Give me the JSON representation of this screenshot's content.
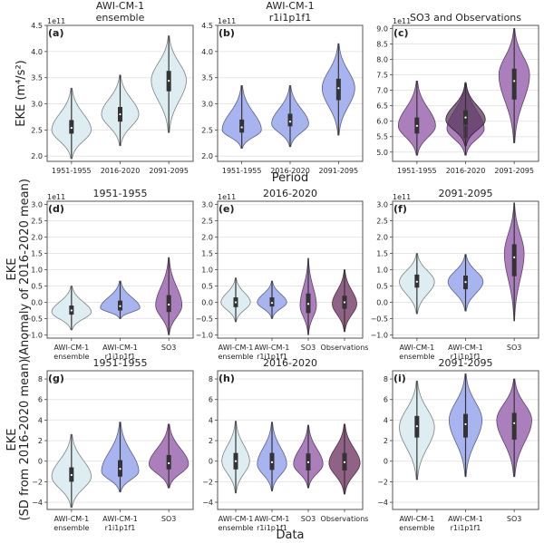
{
  "figure": {
    "top_row_xlabel": "Period",
    "bottom_row_xlabel": "Data",
    "row_ylabels": [
      [
        "EKE (m⁴/s²)"
      ],
      [
        "EKE",
        "(Anomaly of 2016-2020 mean)"
      ],
      [
        "EKE",
        "(SD from 2016-2020 mean)"
      ]
    ],
    "colors": {
      "AWI-CM-1 ensemble": "#dcecf0",
      "AWI-CM-1 r1i1p1f1": "#a3b0ee",
      "SO3": "#a678b8",
      "Observations": "#8a5a7e",
      "SO3 2016-2020 overlay": "#5a3a5e",
      "box": "#333333",
      "grid": "#e6e6e6"
    }
  },
  "chart_data": [
    {
      "panel": "(a)",
      "type": "violin",
      "title": [
        "AWI-CM-1",
        "ensemble"
      ],
      "offset_label": "1e11",
      "ylim": [
        1.9,
        4.5
      ],
      "yticks": [
        2.0,
        2.5,
        3.0,
        3.5,
        4.0,
        4.5
      ],
      "ytick_labels": [
        "2.0",
        "2.5",
        "3.0",
        "3.5",
        "4.0",
        "4.5"
      ],
      "categories": [
        "1951-1955",
        "2016-2020",
        "2091-2095"
      ],
      "series": [
        {
          "name": "AWI-CM-1 ensemble",
          "color_key": "AWI-CM-1 ensemble",
          "violins": [
            {
              "min": 1.95,
              "max": 3.3,
              "q1": 2.43,
              "median": 2.54,
              "q3": 2.69,
              "mode": 2.5,
              "width": 0.9
            },
            {
              "min": 2.2,
              "max": 3.55,
              "q1": 2.66,
              "median": 2.8,
              "q3": 2.94,
              "mode": 2.8,
              "width": 0.85
            },
            {
              "min": 2.45,
              "max": 4.3,
              "q1": 3.24,
              "median": 3.44,
              "q3": 3.63,
              "mode": 3.45,
              "width": 0.8
            }
          ]
        }
      ]
    },
    {
      "panel": "(b)",
      "type": "violin",
      "title": [
        "AWI-CM-1",
        "r1i1p1f1"
      ],
      "offset_label": "1e11",
      "ylim": [
        1.9,
        4.5
      ],
      "yticks": [
        2.0,
        2.5,
        3.0,
        3.5,
        4.0,
        4.5
      ],
      "ytick_labels": [
        "2.0",
        "2.5",
        "3.0",
        "3.5",
        "4.0",
        "4.5"
      ],
      "categories": [
        "1951-1955",
        "2016-2020",
        "2091-2095"
      ],
      "series": [
        {
          "name": "AWI-CM-1 r1i1p1f1",
          "color_key": "AWI-CM-1 r1i1p1f1",
          "violins": [
            {
              "min": 2.15,
              "max": 3.35,
              "q1": 2.45,
              "median": 2.55,
              "q3": 2.7,
              "mode": 2.5,
              "width": 0.9
            },
            {
              "min": 2.18,
              "max": 3.35,
              "q1": 2.57,
              "median": 2.66,
              "q3": 2.81,
              "mode": 2.62,
              "width": 0.85
            },
            {
              "min": 2.4,
              "max": 4.15,
              "q1": 3.07,
              "median": 3.3,
              "q3": 3.48,
              "mode": 3.3,
              "width": 0.75
            }
          ]
        }
      ]
    },
    {
      "panel": "(c)",
      "type": "violin",
      "title": [
        "SO3 and Observations"
      ],
      "offset_label": "1e11",
      "ylim": [
        4.7,
        9.1
      ],
      "yticks": [
        5.0,
        5.5,
        6.0,
        6.5,
        7.0,
        7.5,
        8.0,
        8.5,
        9.0
      ],
      "ytick_labels": [
        "5.0",
        "5.5",
        "6.0",
        "6.5",
        "7.0",
        "7.5",
        "8.0",
        "8.5",
        "9.0"
      ],
      "categories": [
        "1951-1955",
        "2016-2020",
        "2091-2095"
      ],
      "series": [
        {
          "name": "SO3",
          "color_key": "SO3",
          "violins": [
            {
              "min": 4.9,
              "max": 7.3,
              "q1": 5.6,
              "median": 5.85,
              "q3": 6.12,
              "mode": 5.85,
              "width": 0.85
            },
            {
              "min": 4.9,
              "max": 7.25,
              "q1": 5.45,
              "median": 5.85,
              "q3": 6.35,
              "mode": 5.75,
              "width": 0.85
            },
            {
              "min": 5.3,
              "max": 9.0,
              "q1": 6.7,
              "median": 7.3,
              "q3": 7.7,
              "mode": 7.5,
              "width": 0.7
            }
          ]
        },
        {
          "name": "Observations",
          "color_key": "SO3 2016-2020 overlay",
          "violins": [
            null,
            {
              "min": 5.2,
              "max": 7.2,
              "q1": 5.9,
              "median": 6.12,
              "q3": 6.35,
              "mode": 6.05,
              "width": 0.9
            },
            null
          ]
        }
      ]
    },
    {
      "panel": "(d)",
      "type": "violin",
      "title": [
        "1951-1955"
      ],
      "offset_label": "1e11",
      "ylim": [
        -1.1,
        3.1
      ],
      "yticks": [
        -1.0,
        -0.5,
        0.0,
        0.5,
        1.0,
        1.5,
        2.0,
        2.5,
        3.0
      ],
      "ytick_labels": [
        "−1.0",
        "−0.5",
        "0.0",
        "0.5",
        "1.0",
        "1.5",
        "2.0",
        "2.5",
        "3.0"
      ],
      "categories": [
        "AWI-CM-1\nensemble",
        "AWI-CM-1\nr1i1p1f1",
        "SO3"
      ],
      "series": [
        {
          "name": "period",
          "violins": [
            {
              "color_key": "AWI-CM-1 ensemble",
              "min": -0.85,
              "max": 0.5,
              "q1": -0.38,
              "median": -0.25,
              "q3": -0.1,
              "mode": -0.3,
              "width": 0.9
            },
            {
              "color_key": "AWI-CM-1 r1i1p1f1",
              "min": -0.5,
              "max": 0.65,
              "q1": -0.25,
              "median": -0.12,
              "q3": 0.05,
              "mode": -0.17,
              "width": 0.9
            },
            {
              "color_key": "SO3",
              "min": -1.0,
              "max": 1.37,
              "q1": -0.3,
              "median": -0.07,
              "q3": 0.22,
              "mode": -0.1,
              "width": 0.6
            }
          ]
        }
      ]
    },
    {
      "panel": "(e)",
      "type": "violin",
      "title": [
        "2016-2020"
      ],
      "offset_label": "1e11",
      "ylim": [
        -1.1,
        3.1
      ],
      "yticks": [
        -1.0,
        -0.5,
        0.0,
        0.5,
        1.0,
        1.5,
        2.0,
        2.5,
        3.0
      ],
      "ytick_labels": [
        "−1.0",
        "−0.5",
        "0.0",
        "0.5",
        "1.0",
        "1.5",
        "2.0",
        "2.5",
        "3.0"
      ],
      "categories": [
        "AWI-CM-1\nensemble",
        "AWI-CM-1\nr1i1p1f1",
        "SO3",
        "Observations"
      ],
      "series": [
        {
          "name": "period",
          "violins": [
            {
              "color_key": "AWI-CM-1 ensemble",
              "min": -0.6,
              "max": 0.75,
              "q1": -0.15,
              "median": 0.0,
              "q3": 0.15,
              "mode": 0.0,
              "width": 0.9
            },
            {
              "color_key": "AWI-CM-1 r1i1p1f1",
              "min": -0.5,
              "max": 0.65,
              "q1": -0.13,
              "median": -0.02,
              "q3": 0.15,
              "mode": 0.0,
              "width": 0.9
            },
            {
              "color_key": "SO3",
              "min": -1.0,
              "max": 1.35,
              "q1": -0.33,
              "median": -0.05,
              "q3": 0.27,
              "mode": -0.1,
              "width": 0.5
            },
            {
              "color_key": "Observations",
              "min": -0.9,
              "max": 1.0,
              "q1": -0.2,
              "median": 0.0,
              "q3": 0.2,
              "mode": -0.05,
              "width": 0.75
            }
          ]
        }
      ]
    },
    {
      "panel": "(f)",
      "type": "violin",
      "title": [
        "2091-2095"
      ],
      "offset_label": "1e11",
      "ylim": [
        -1.1,
        3.1
      ],
      "yticks": [
        -1.0,
        -0.5,
        0.0,
        0.5,
        1.0,
        1.5,
        2.0,
        2.5,
        3.0
      ],
      "ytick_labels": [
        "−1.0",
        "−0.5",
        "0.0",
        "0.5",
        "1.0",
        "1.5",
        "2.0",
        "2.5",
        "3.0"
      ],
      "categories": [
        "AWI-CM-1\nensemble",
        "AWI-CM-1\nr1i1p1f1",
        "SO3"
      ],
      "series": [
        {
          "name": "period",
          "violins": [
            {
              "color_key": "AWI-CM-1 ensemble",
              "min": -0.35,
              "max": 1.5,
              "q1": 0.45,
              "median": 0.63,
              "q3": 0.85,
              "mode": 0.63,
              "width": 0.8
            },
            {
              "color_key": "AWI-CM-1 r1i1p1f1",
              "min": -0.27,
              "max": 1.47,
              "q1": 0.4,
              "median": 0.62,
              "q3": 0.82,
              "mode": 0.63,
              "width": 0.8
            },
            {
              "color_key": "SO3",
              "min": -0.57,
              "max": 3.05,
              "q1": 0.8,
              "median": 1.38,
              "q3": 1.78,
              "mode": 1.5,
              "width": 0.45
            }
          ]
        }
      ]
    },
    {
      "panel": "(g)",
      "type": "violin",
      "title": [
        "1951-1955"
      ],
      "offset_label": "",
      "ylim": [
        -4.7,
        8.8
      ],
      "yticks": [
        -4,
        -2,
        0,
        2,
        4,
        6,
        8
      ],
      "ytick_labels": [
        "−4",
        "−2",
        "0",
        "2",
        "4",
        "6",
        "8"
      ],
      "categories": [
        "AWI-CM-1\nensemble",
        "AWI-CM-1\nr1i1p1f1",
        "SO3"
      ],
      "series": [
        {
          "name": "period",
          "violins": [
            {
              "color_key": "AWI-CM-1 ensemble",
              "min": -4.5,
              "max": 2.6,
              "q1": -2.0,
              "median": -1.35,
              "q3": -0.6,
              "mode": -1.5,
              "width": 0.9
            },
            {
              "color_key": "AWI-CM-1 r1i1p1f1",
              "min": -3.0,
              "max": 3.8,
              "q1": -1.5,
              "median": -0.75,
              "q3": 0.1,
              "mode": -1.0,
              "width": 0.85
            },
            {
              "color_key": "SO3",
              "min": -2.6,
              "max": 3.6,
              "q1": -0.8,
              "median": -0.2,
              "q3": 0.6,
              "mode": -0.3,
              "width": 0.9
            }
          ]
        }
      ]
    },
    {
      "panel": "(h)",
      "type": "violin",
      "title": [
        "2016-2020"
      ],
      "offset_label": "",
      "ylim": [
        -4.7,
        8.8
      ],
      "yticks": [
        -4,
        -2,
        0,
        2,
        4,
        6,
        8
      ],
      "ytick_labels": [
        "−4",
        "−2",
        "0",
        "2",
        "4",
        "6",
        "8"
      ],
      "categories": [
        "AWI-CM-1\nensemble",
        "AWI-CM-1\nr1i1p1f1",
        "SO3",
        "Observations"
      ],
      "series": [
        {
          "name": "period",
          "violins": [
            {
              "color_key": "AWI-CM-1 ensemble",
              "min": -3.1,
              "max": 3.9,
              "q1": -0.8,
              "median": 0.0,
              "q3": 0.8,
              "mode": 0.0,
              "width": 0.85
            },
            {
              "color_key": "AWI-CM-1 r1i1p1f1",
              "min": -2.9,
              "max": 3.8,
              "q1": -0.85,
              "median": -0.1,
              "q3": 0.8,
              "mode": -0.3,
              "width": 0.9
            },
            {
              "color_key": "SO3",
              "min": -2.6,
              "max": 3.5,
              "q1": -0.9,
              "median": -0.1,
              "q3": 0.75,
              "mode": -0.3,
              "width": 0.9
            },
            {
              "color_key": "Observations",
              "min": -3.2,
              "max": 3.6,
              "q1": -0.9,
              "median": -0.1,
              "q3": 0.8,
              "mode": -0.2,
              "width": 0.95
            }
          ]
        }
      ]
    },
    {
      "panel": "(i)",
      "type": "violin",
      "title": [
        "2091-2095"
      ],
      "offset_label": "",
      "ylim": [
        -4.7,
        8.8
      ],
      "yticks": [
        -4,
        -2,
        0,
        2,
        4,
        6,
        8
      ],
      "ytick_labels": [
        "−4",
        "−2",
        "0",
        "2",
        "4",
        "6",
        "8"
      ],
      "categories": [
        "AWI-CM-1\nensemble",
        "AWI-CM-1\nr1i1p1f1",
        "SO3"
      ],
      "series": [
        {
          "name": "period",
          "violins": [
            {
              "color_key": "AWI-CM-1 ensemble",
              "min": -1.8,
              "max": 7.8,
              "q1": 2.3,
              "median": 3.4,
              "q3": 4.4,
              "mode": 3.3,
              "width": 0.8
            },
            {
              "color_key": "AWI-CM-1 r1i1p1f1",
              "min": -1.5,
              "max": 8.5,
              "q1": 2.3,
              "median": 3.6,
              "q3": 4.6,
              "mode": 4.0,
              "width": 0.75
            },
            {
              "color_key": "SO3",
              "min": -1.5,
              "max": 8.0,
              "q1": 2.1,
              "median": 3.7,
              "q3": 4.7,
              "mode": 4.0,
              "width": 0.8
            }
          ]
        }
      ]
    }
  ]
}
